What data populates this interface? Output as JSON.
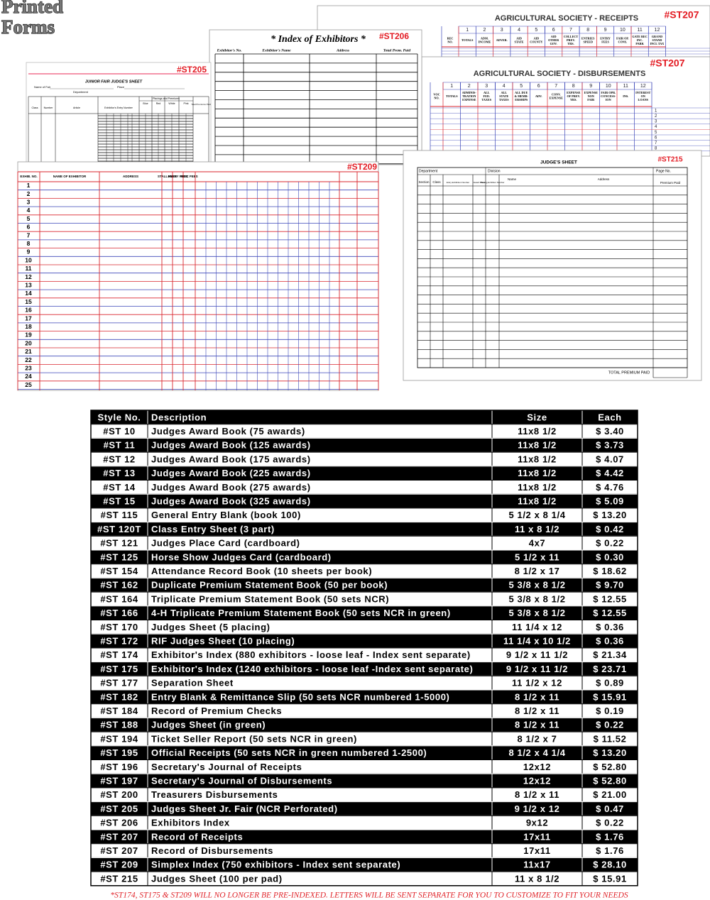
{
  "header": {
    "title_line1": "Printed",
    "title_line2": "Forms"
  },
  "forms": {
    "column_numbers": [
      "1",
      "2",
      "3",
      "4",
      "5",
      "6",
      "7",
      "8",
      "9",
      "10",
      "11",
      "12"
    ],
    "st207_receipts": {
      "code": "#ST207",
      "title": "AGRICULTURAL SOCIETY - RECEIPTS",
      "columns": [
        [
          "REC",
          "NO."
        ],
        [
          "TOTALS"
        ],
        [
          "ADM.",
          "INCOME"
        ],
        [
          "ADVER."
        ],
        [
          "AID",
          "STATE"
        ],
        [
          "AID",
          "COUNTY"
        ],
        [
          "AID",
          "OTHER",
          "GOV."
        ],
        [
          "COLLECT",
          "PREV.",
          "YRS."
        ],
        [
          "ENTRIES",
          "SPEED"
        ],
        [
          "ENTRY",
          "FEES"
        ],
        [
          "FAIR OP.",
          "CONS."
        ],
        [
          "GATE REC",
          "INC.",
          "PARK"
        ],
        [
          "GRAND",
          "STAND",
          "INCL TAX"
        ]
      ]
    },
    "st207_disbursements": {
      "code": "#ST207",
      "title": "AGRICULTURAL SOCIETY - DISBURSEMENTS",
      "columns": [
        [
          "VOC",
          "NO."
        ],
        [
          "TOTALS"
        ],
        [
          "ADMINIS-",
          "TRATION",
          "EXPENSE"
        ],
        [
          "ALL",
          "FED.",
          "TAXES"
        ],
        [
          "ALL",
          "STATE",
          "TAXES"
        ],
        [
          "ALL DUE",
          "& MEMB-",
          "ERSHIPS"
        ],
        [
          "ADV."
        ],
        [
          "CONV.",
          "EXPENSE"
        ],
        [
          "EXPENSE",
          "OF PREV.",
          "YRS."
        ],
        [
          "EXPENSE",
          "NON",
          "FAIR"
        ],
        [
          "FAIR OPR.",
          "CONCESS-",
          "ION"
        ],
        [
          "INS."
        ],
        [
          "INTEREST",
          "ON",
          "LOANS"
        ]
      ]
    },
    "st206": {
      "code": "#ST206",
      "title": "* Index of Exhibitors *",
      "columns": [
        "Exhibitor's No.",
        "Exhibitor's Name",
        "Address",
        "Total Prem. Paid"
      ]
    },
    "st205": {
      "code": "#ST205",
      "title": "JUNIOR FAIR JUDGE'S SHEET",
      "name_of_fair": "Name of Fair",
      "place": "Place",
      "department": "Department",
      "columns": [
        "Class",
        "Number",
        "Article",
        "Exhibitor's Entry Number"
      ],
      "placings": "Placings and Premiums",
      "placing_columns": [
        "Blue",
        "Red",
        "White",
        "Pink"
      ],
      "total": "Total Premiums Paid"
    },
    "st209": {
      "code": "#ST209",
      "columns": [
        "EXHIB. NO.",
        "NAME OF EXHIBITOR",
        "ADDRESS",
        "STALL FEES",
        "ENTRY FEES",
        "MISC FEES"
      ],
      "row_numbers": [
        1,
        2,
        3,
        4,
        5,
        6,
        7,
        8,
        9,
        10,
        11,
        12,
        13,
        14,
        15,
        16,
        17,
        18,
        19,
        20,
        21,
        22,
        23,
        24,
        25
      ]
    },
    "st215": {
      "code": "#ST215",
      "title": "JUDGE'S SHEET",
      "department": "Department",
      "division": "Division",
      "page_no": "Page No.",
      "columns": [
        "Section",
        "Class",
        "Entry Exhibition Number",
        "Award Place",
        "Placing Exhibitor Number",
        "Name",
        "Address",
        "Premium Paid"
      ],
      "total": "TOTAL PREMIUM PAID"
    }
  },
  "table": {
    "header": [
      "Style No.",
      "Description",
      "Size",
      "Each"
    ],
    "rows": [
      [
        "#ST 10",
        "Judges Award Book (75 awards)",
        "11x8 1/2",
        "$ 3.40"
      ],
      [
        "#ST 11",
        "Judges Award Book (125 awards)",
        "11x8 1/2",
        "$ 3.73"
      ],
      [
        "#ST 12",
        "Judges Award Book (175 awards)",
        "11x8 1/2",
        "$ 4.07"
      ],
      [
        "#ST 13",
        "Judges Award Book (225 awards)",
        "11x8 1/2",
        "$ 4.42"
      ],
      [
        "#ST 14",
        "Judges Award Book (275 awards)",
        "11x8 1/2",
        "$ 4.76"
      ],
      [
        "#ST 15",
        "Judges Award Book (325 awards)",
        "11x8 1/2",
        "$ 5.09"
      ],
      [
        "#ST 115",
        "General Entry Blank (book 100)",
        "5 1/2 x 8 1/4",
        "$ 13.20"
      ],
      [
        "#ST 120T",
        "Class Entry Sheet (3 part)",
        "11 x 8 1/2",
        "$ 0.42"
      ],
      [
        "#ST 121",
        "Judges Place Card (cardboard)",
        "4x7",
        "$ 0.22"
      ],
      [
        "#ST 125",
        "Horse Show Judges Card (cardboard)",
        "5 1/2 x 11",
        "$ 0.30"
      ],
      [
        "#ST 154",
        "Attendance Record Book (10 sheets per book)",
        "8 1/2 x 17",
        "$ 18.62"
      ],
      [
        "#ST 162",
        "Duplicate Premium Statement Book (50 per book)",
        "5 3/8 x 8 1/2",
        "$ 9.70"
      ],
      [
        "#ST 164",
        "Triplicate Premium Statement Book (50 sets NCR)",
        "5 3/8 x 8 1/2",
        "$ 12.55"
      ],
      [
        "#ST 166",
        "4-H Triplicate Premium Statement Book (50 sets NCR in green)",
        "5 3/8 x 8 1/2",
        "$ 12.55"
      ],
      [
        "#ST 170",
        "Judges Sheet  (5 placing)",
        "11 1/4 x 12",
        "$ 0.36"
      ],
      [
        "#ST 172",
        "RIF Judges Sheet (10 placing)",
        "11 1/4 x 10 1/2",
        "$ 0.36"
      ],
      [
        "#ST 174",
        "Exhibitor's Index (880 exhibitors - loose leaf - Index sent separate)",
        "9 1/2 x 11 1/2",
        "$ 21.34"
      ],
      [
        "#ST 175",
        "Exhibitor's Index (1240 exhibitors - loose leaf -Index sent separate)",
        "9 1/2 x 11 1/2",
        "$ 23.71"
      ],
      [
        "#ST 177",
        "Separation Sheet",
        "11 1/2 x 12",
        "$ 0.89"
      ],
      [
        "#ST 182",
        "Entry Blank & Remittance Slip (50 sets NCR numbered 1-5000)",
        "8 1/2 x 11",
        "$ 15.91"
      ],
      [
        "#ST 184",
        "Record of Premium Checks",
        "8 1/2 x 11",
        "$ 0.19"
      ],
      [
        "#ST 188",
        "Judges Sheet  (in green)",
        "8 1/2 x 11",
        "$ 0.22"
      ],
      [
        "#ST 194",
        "Ticket Seller Report (50 sets NCR in green)",
        "8 1/2 x 7",
        "$ 11.52"
      ],
      [
        "#ST 195",
        "Official Receipts (50 sets NCR in green numbered 1-2500)",
        "8 1/2 x 4 1/4",
        "$ 13.20"
      ],
      [
        "#ST 196",
        "Secretary's Journal of Receipts",
        "12x12",
        "$ 52.80"
      ],
      [
        "#ST 197",
        "Secretary's Journal of Disbursements",
        "12x12",
        "$ 52.80"
      ],
      [
        "#ST 200",
        "Treasurers Disbursements",
        "8 1/2 x 11",
        "$ 21.00"
      ],
      [
        "#ST 205",
        "Judges Sheet Jr. Fair (NCR Perforated)",
        "9 1/2 x 12",
        "$ 0.47"
      ],
      [
        "#ST 206",
        "Exhibitors Index",
        "9x12",
        "$ 0.22"
      ],
      [
        "#ST 207",
        "Record of Receipts",
        "17x11",
        "$ 1.76"
      ],
      [
        "#ST 207",
        "Record of Disbursements",
        "17x11",
        "$ 1.76"
      ],
      [
        "#ST 209",
        "Simplex Index (750 exhibitors - Index sent separate)",
        "11x17",
        "$ 28.10"
      ],
      [
        "#ST 215",
        "Judges Sheet (100 per pad)",
        "11 x 8 1/2",
        "$ 15.91"
      ]
    ]
  },
  "footnote": "*ST174, ST175 & ST209 WILL NO LONGER BE PRE-INDEXED.  LETTERS WILL BE SENT SEPARATE FOR YOU TO CUSTOMIZE TO FIT YOUR NEEDS"
}
